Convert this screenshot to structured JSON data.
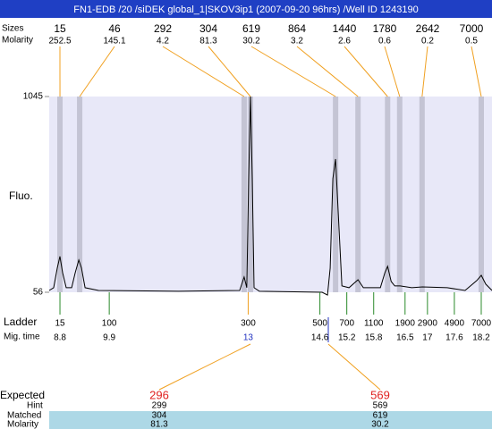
{
  "header": {
    "title": "FN1-EDB /20 /siDEK global_1|SKOV3ip1 (2007-09-20 96hrs) /Well ID 1243190"
  },
  "peaks": {
    "size_label": "Sizes",
    "molarity_label": "Molarity",
    "sizes": [
      15,
      46,
      292,
      304,
      619,
      864,
      1440,
      1780,
      2642,
      7000
    ],
    "molarity": [
      252.5,
      145.1,
      4.2,
      81.3,
      30.2,
      3.2,
      2.6,
      0.6,
      0.2,
      0.5
    ],
    "times": [
      8.8,
      9.24,
      12.91,
      13.05,
      14.95,
      15.45,
      16.11,
      16.38,
      16.88,
      18.2
    ]
  },
  "chart_data": {
    "type": "line",
    "y_label": "Fluo.",
    "color": "#000000",
    "ylim": [
      56,
      1045
    ],
    "yticks": [
      56,
      1045
    ],
    "xlim": [
      8.56,
      18.44
    ],
    "x": [
      8.56,
      8.66,
      8.74,
      8.8,
      8.86,
      8.94,
      9.06,
      9.14,
      9.22,
      9.28,
      9.36,
      9.66,
      11.45,
      12.81,
      12.91,
      12.97,
      13.01,
      13.05,
      13.09,
      13.13,
      13.25,
      14.65,
      14.77,
      14.83,
      14.89,
      14.95,
      15.01,
      15.09,
      15.25,
      15.45,
      15.57,
      15.95,
      16.05,
      16.11,
      16.19,
      16.27,
      16.39,
      16.65,
      16.89,
      17.44,
      17.84,
      18.1,
      18.2,
      18.3,
      18.44
    ],
    "values": [
      65,
      79,
      178,
      237,
      155,
      79,
      79,
      155,
      219,
      178,
      79,
      65,
      61,
      65,
      133,
      79,
      630,
      1045,
      630,
      79,
      61,
      56,
      42,
      178,
      630,
      729,
      449,
      88,
      79,
      119,
      79,
      79,
      155,
      187,
      110,
      88,
      88,
      79,
      83,
      79,
      65,
      115,
      142,
      97,
      65
    ]
  },
  "ladder": {
    "label": "Ladder",
    "time_label": "Mig. time",
    "sizes": [
      15,
      100,
      300,
      500,
      700,
      1100,
      1900,
      2900,
      4900,
      7000
    ],
    "times": [
      8.8,
      9.9,
      13,
      14.6,
      15.2,
      15.8,
      16.5,
      17,
      17.6,
      18.2
    ]
  },
  "expected": {
    "expected_label": "Expected",
    "hint_label": "Hint",
    "matched_label": "Matched",
    "molarity_label": "Molarity",
    "columns": [
      {
        "expected": 296,
        "hint": 299,
        "matched": 304,
        "molarity": 81.3
      },
      {
        "expected": 569,
        "hint": 569,
        "matched": 619,
        "molarity": 30.2
      }
    ]
  }
}
